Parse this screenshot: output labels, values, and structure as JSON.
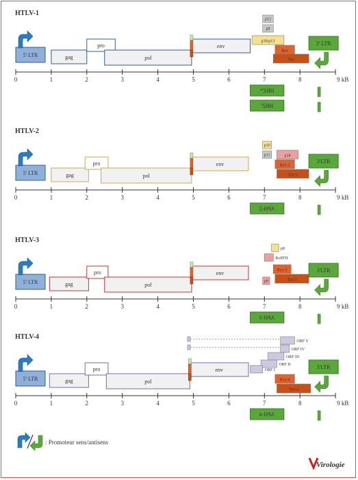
{
  "axis_unit": "9 kB",
  "ticks": [
    "0",
    "1",
    "2",
    "3",
    "4",
    "5",
    "6",
    "7",
    "8"
  ],
  "colors": {
    "htlv1_border": "#2f5f9a",
    "htlv2_border": "#d6a84a",
    "htlv3_border": "#cc3333",
    "htlv4_border": "#7a69ad",
    "ltr_fill": "#8fb0d8",
    "ltr_border": "#2f5f9a",
    "gene_fill": "#f1f1f1",
    "accessory_fill": "#c8c8c8",
    "p30_fill": "#f6e28c",
    "rex_fill": "#e0632d",
    "tax_fill": "#c65118",
    "p28_fill": "#eea0a0",
    "orf_fill": "#cfc8e2",
    "hbz_fill": "#5aa83a",
    "promoter_blue": "#2a7bc0",
    "promoter_green": "#5aa83a",
    "frame_red": "#e04a4a"
  },
  "panels": [
    {
      "id": "htlv1",
      "title": "HTLV-1",
      "ltr5": "5' LTR",
      "ltr3": "3' LTR",
      "genes": {
        "gag": "gag",
        "pro": "pro",
        "pol": "pol",
        "env": "env"
      },
      "accessory": [
        {
          "id": "p12",
          "label": "p12",
          "color": "gray"
        },
        {
          "id": "p8",
          "label": "p8",
          "color": "gray"
        },
        {
          "id": "p30",
          "label": "p30/p13",
          "color": "yellow"
        },
        {
          "id": "rex",
          "label": "Rex",
          "color": "orange"
        },
        {
          "id": "tax",
          "label": "Tax",
          "color": "dark-orange"
        }
      ],
      "antisense": [
        {
          "label": "HBZ",
          "superscript": "us"
        },
        {
          "label": "HBZ",
          "superscript": "s"
        }
      ]
    },
    {
      "id": "htlv2",
      "title": "HTLV-2",
      "ltr5": "5' LTR",
      "ltr3": "3'LTR",
      "genes": {
        "gag": "gag",
        "pro": "pro",
        "pol": "pol",
        "env": "env"
      },
      "accessory": [
        {
          "id": "p10",
          "label": "p10",
          "color": "yellow"
        },
        {
          "id": "p11",
          "label": "p11",
          "color": "gray"
        },
        {
          "id": "p28",
          "label": "p28",
          "color": "pink"
        },
        {
          "id": "rex",
          "label": "Rex-2",
          "color": "orange"
        },
        {
          "id": "tax",
          "label": "Tax-2",
          "color": "dark-orange"
        }
      ],
      "antisense": [
        {
          "label": "APH-2"
        }
      ]
    },
    {
      "id": "htlv3",
      "title": "HTLV-3",
      "ltr5": "5' LTR",
      "ltr3": "3'LTR",
      "genes": {
        "gag": "gag",
        "pro": "pro",
        "pol": "pol",
        "env": "env"
      },
      "accessory": [
        {
          "id": "p8",
          "label": "p8",
          "color": "yellow"
        },
        {
          "id": "rorfii",
          "label": "RoRFII",
          "color": "pink"
        },
        {
          "id": "p9",
          "label": "p9",
          "color": "pink"
        },
        {
          "id": "rex",
          "label": "Rex-3",
          "color": "orange"
        },
        {
          "id": "tax",
          "label": "Tax-3",
          "color": "dark-orange"
        }
      ],
      "antisense": [
        {
          "label": "APH-3"
        }
      ]
    },
    {
      "id": "htlv4",
      "title": "HTLV-4",
      "ltr5": "5' LTR",
      "ltr3": "3'LTR",
      "genes": {
        "gag": "gag",
        "pro": "pro",
        "pol": "pol",
        "env": "env"
      },
      "accessory": [
        {
          "id": "orf5",
          "label": "ORF V",
          "color": "lavender"
        },
        {
          "id": "orf4",
          "label": "ORF IV",
          "color": "lavender"
        },
        {
          "id": "orf3",
          "label": "ORF III",
          "color": "lavender"
        },
        {
          "id": "orf2",
          "label": "ORF II",
          "color": "lavender"
        },
        {
          "id": "orf1",
          "label": "ORF I",
          "color": "lavender"
        },
        {
          "id": "rex",
          "label": "Rex-4",
          "color": "orange"
        },
        {
          "id": "tax",
          "label": "Tax-4",
          "color": "dark-orange"
        }
      ],
      "antisense": [
        {
          "label": "APH-4"
        }
      ]
    }
  ],
  "legend": {
    "text": ": Promoteur sens/antisens"
  },
  "logo": {
    "text": "Virologie"
  }
}
